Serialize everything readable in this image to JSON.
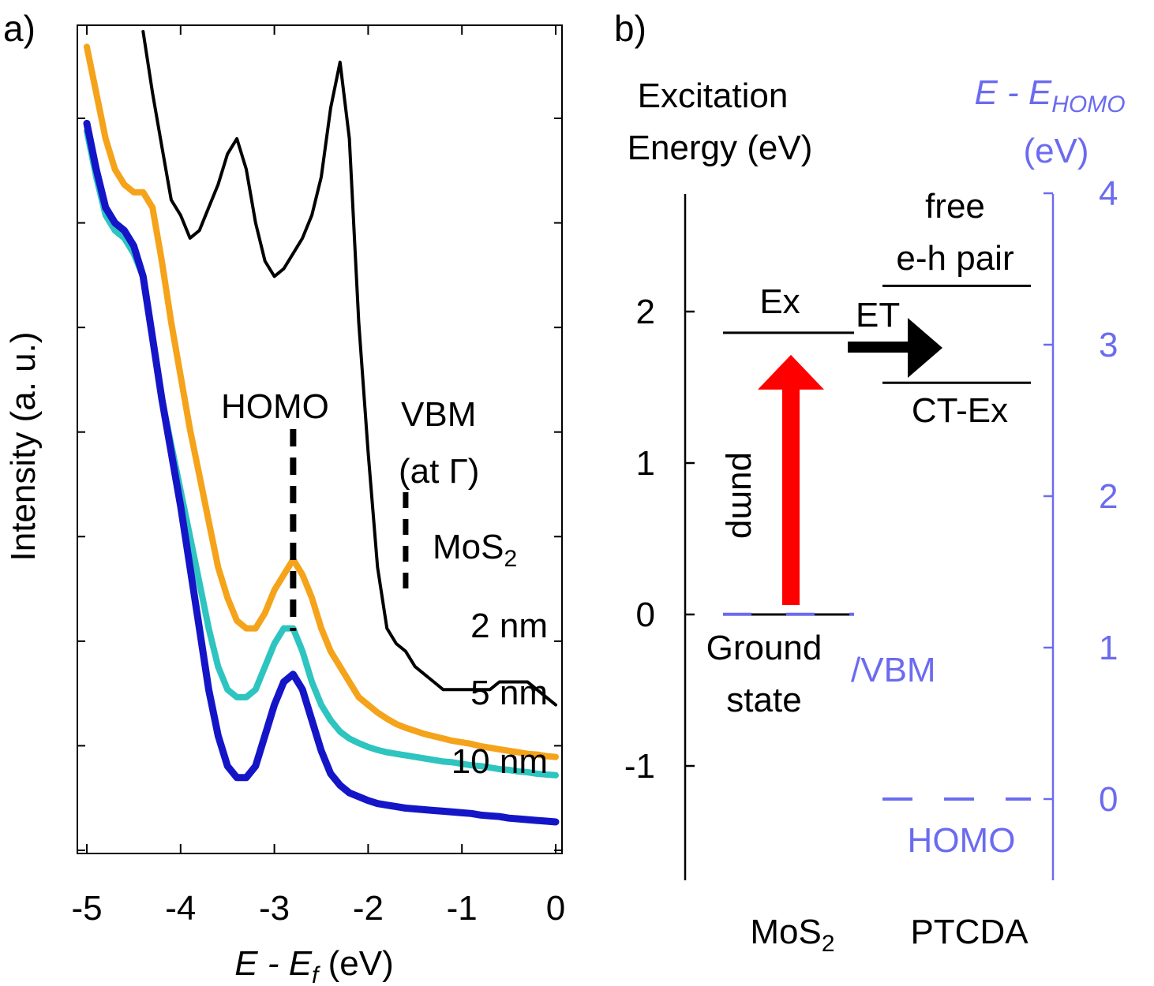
{
  "panel_a": {
    "panel_label": "a)",
    "xlabel_main": "E - E",
    "xlabel_sub": "f",
    "xlabel_unit": " (eV)",
    "ylabel": "Intensity (a. u.)",
    "homo_label": "HOMO",
    "vbm_label_1": "VBM",
    "vbm_label_2": "(at Γ)"
  },
  "panel_b": {
    "panel_label": "b)",
    "left_axis_title_1": "Excitation",
    "left_axis_title_2": "Energy (eV)",
    "right_axis_title_main": "E - E",
    "right_axis_title_sub": "HOMO",
    "right_axis_title_2": "(eV)",
    "ex_label": "Ex",
    "et_label": "ET",
    "free_label_1": "free",
    "free_label_2": "e-h pair",
    "ctex_label": "CT-Ex",
    "pump_label": "pump",
    "ground_label_1": "Ground",
    "ground_label_2": "state",
    "vbm_label": "/VBM",
    "homo_label": "HOMO",
    "mos2_main": "MoS",
    "mos2_sub": "2",
    "ptcda_label": "PTCDA",
    "colors": {
      "axis_right": "#6b6bf0",
      "pump_arrow": "#ff0000",
      "et_arrow": "#000000"
    }
  },
  "chart_data": [
    {
      "type": "line",
      "xlim": [
        -5,
        0
      ],
      "x_ticks": [
        -5,
        -4,
        -3,
        -2,
        -1,
        0
      ],
      "x_tick_labels": [
        "-5",
        "-4",
        "-3",
        "-2",
        "-1",
        "0"
      ],
      "xlabel": "E - Ef (eV)",
      "ylabel": "Intensity (a. u.)",
      "y_tick_labels_shown": false,
      "y_tick_count": 8,
      "homo_position": -2.8,
      "vbm_position": -1.6,
      "series": [
        {
          "name": "MoS₂",
          "label_main": "MoS",
          "label_sub": "2",
          "color": "#000000",
          "x": [
            -4.4,
            -4.3,
            -4.2,
            -4.1,
            -4.0,
            -3.9,
            -3.8,
            -3.7,
            -3.6,
            -3.5,
            -3.4,
            -3.3,
            -3.2,
            -3.1,
            -3.0,
            -2.9,
            -2.8,
            -2.7,
            -2.6,
            -2.5,
            -2.4,
            -2.3,
            -2.2,
            -2.1,
            -2.0,
            -1.9,
            -1.8,
            -1.7,
            -1.6,
            -1.5,
            -1.4,
            -1.3,
            -1.2,
            -1.1,
            -1.0,
            -0.9,
            -0.8,
            -0.7,
            -0.6,
            -0.5,
            -0.4,
            -0.3,
            -0.2,
            -0.1,
            0.0
          ],
          "y": [
            100,
            92,
            85,
            78,
            76,
            73,
            74,
            77,
            80,
            84,
            86,
            82,
            75,
            70,
            68,
            69,
            71,
            73,
            76,
            81,
            90,
            96,
            86,
            62,
            45,
            30,
            22,
            20,
            19,
            17,
            16,
            15,
            14,
            14,
            14,
            14,
            14,
            14,
            15,
            15,
            15,
            15,
            14,
            13,
            12
          ]
        },
        {
          "name": "2 nm",
          "label": "2 nm",
          "color": "#f5a31a",
          "x": [
            -5.0,
            -4.9,
            -4.8,
            -4.7,
            -4.6,
            -4.5,
            -4.4,
            -4.3,
            -4.2,
            -4.1,
            -4.0,
            -3.9,
            -3.8,
            -3.7,
            -3.6,
            -3.5,
            -3.4,
            -3.3,
            -3.2,
            -3.1,
            -3.0,
            -2.9,
            -2.8,
            -2.7,
            -2.6,
            -2.5,
            -2.4,
            -2.3,
            -2.2,
            -2.1,
            -2.0,
            -1.9,
            -1.8,
            -1.7,
            -1.6,
            -1.5,
            -1.4,
            -1.3,
            -1.2,
            -1.1,
            -1.0,
            -0.9,
            -0.8,
            -0.7,
            -0.6,
            -0.5,
            -0.4,
            -0.3,
            -0.2,
            -0.1,
            0.0
          ],
          "y": [
            98,
            92,
            86,
            82,
            80,
            79,
            79,
            77,
            70,
            62,
            55,
            48,
            42,
            36,
            30,
            26,
            23,
            22,
            22,
            24,
            27,
            29,
            31,
            29,
            26,
            22,
            19,
            17,
            15,
            13,
            12,
            11,
            10.2,
            9.5,
            9,
            8.6,
            8.2,
            7.9,
            7.6,
            7.3,
            7.1,
            6.9,
            6.6,
            6.4,
            6.2,
            6,
            5.8,
            5.6,
            5.5,
            5.3,
            5.2
          ]
        },
        {
          "name": "5 nm",
          "label": "5 nm",
          "color": "#2ec4c0",
          "x": [
            -5.0,
            -4.9,
            -4.8,
            -4.7,
            -4.6,
            -4.5,
            -4.4,
            -4.3,
            -4.2,
            -4.1,
            -4.0,
            -3.9,
            -3.8,
            -3.7,
            -3.6,
            -3.5,
            -3.4,
            -3.3,
            -3.2,
            -3.1,
            -3.0,
            -2.9,
            -2.8,
            -2.7,
            -2.6,
            -2.5,
            -2.4,
            -2.3,
            -2.2,
            -2.1,
            -2.0,
            -1.9,
            -1.8,
            -1.7,
            -1.6,
            -1.5,
            -1.4,
            -1.3,
            -1.2,
            -1.1,
            -1.0,
            -0.9,
            -0.8,
            -0.7,
            -0.6,
            -0.5,
            -0.4,
            -0.3,
            -0.2,
            -0.1,
            0.0
          ],
          "y": [
            87,
            81,
            76,
            74,
            73,
            71,
            68,
            60,
            52,
            46,
            40,
            34,
            28,
            22,
            17,
            14,
            13,
            13,
            14,
            17,
            20,
            22,
            22,
            19,
            15,
            12,
            10,
            8.5,
            7.6,
            7,
            6.5,
            6.1,
            5.8,
            5.6,
            5.4,
            5.2,
            5.0,
            4.8,
            4.6,
            4.5,
            4.3,
            4.1,
            4.0,
            3.8,
            3.6,
            3.5,
            3.3,
            3.2,
            3.0,
            2.9,
            2.8
          ]
        },
        {
          "name": "10 nm",
          "label": "10 nm",
          "color": "#1515c8",
          "x": [
            -5.0,
            -4.9,
            -4.8,
            -4.7,
            -4.6,
            -4.5,
            -4.4,
            -4.3,
            -4.2,
            -4.1,
            -4.0,
            -3.9,
            -3.8,
            -3.7,
            -3.6,
            -3.5,
            -3.4,
            -3.3,
            -3.2,
            -3.1,
            -3.0,
            -2.9,
            -2.8,
            -2.7,
            -2.6,
            -2.5,
            -2.4,
            -2.3,
            -2.2,
            -2.1,
            -2.0,
            -1.9,
            -1.8,
            -1.7,
            -1.6,
            -1.5,
            -1.4,
            -1.3,
            -1.2,
            -1.1,
            -1.0,
            -0.9,
            -0.8,
            -0.7,
            -0.6,
            -0.5,
            -0.4,
            -0.3,
            -0.2,
            -0.1,
            0.0
          ],
          "y": [
            88,
            82,
            77,
            75,
            74,
            72,
            68,
            60,
            52,
            45,
            38,
            30,
            22,
            14,
            8,
            4,
            2.5,
            2.5,
            4,
            8,
            12,
            15,
            16,
            14,
            10,
            6,
            3,
            1.5,
            0.5,
            0,
            -0.5,
            -0.9,
            -1.1,
            -1.3,
            -1.5,
            -1.6,
            -1.7,
            -1.8,
            -1.9,
            -2.0,
            -2.1,
            -2.2,
            -2.4,
            -2.5,
            -2.6,
            -2.8,
            -2.9,
            -3.0,
            -3.1,
            -3.2,
            -3.3
          ]
        }
      ]
    },
    {
      "type": "energy-level-diagram",
      "left_axis": {
        "title": "Excitation Energy (eV)",
        "ylim": [
          -1.75,
          2.8
        ],
        "ticks": [
          -1,
          0,
          1,
          2
        ],
        "tick_labels": [
          "-1",
          "0",
          "1",
          "2"
        ]
      },
      "right_axis": {
        "title": "E - EHOMO (eV)",
        "ylim": [
          -0.55,
          4
        ],
        "ticks": [
          0,
          1,
          2,
          3,
          4
        ],
        "tick_labels": [
          "0",
          "1",
          "2",
          "3",
          "4"
        ],
        "color": "#6b6bf0"
      },
      "columns": [
        "MoS₂",
        "PTCDA"
      ],
      "levels": [
        {
          "label": "Ex",
          "material": "MoS₂",
          "excitation_energy": 1.86,
          "style": "solid"
        },
        {
          "label": "Ground state",
          "material": "MoS₂",
          "excitation_energy": 0,
          "style": "solid"
        },
        {
          "label": "/VBM",
          "material": "MoS₂",
          "e_minus_ehomo": 1.22,
          "style": "dashed"
        },
        {
          "label": "free e-h pair",
          "material": "PTCDA",
          "excitation_energy": 2.17,
          "style": "solid"
        },
        {
          "label": "CT-Ex",
          "material": "PTCDA",
          "excitation_energy": 1.53,
          "style": "solid"
        },
        {
          "label": "HOMO",
          "material": "PTCDA",
          "e_minus_ehomo": 0,
          "style": "dashed"
        }
      ],
      "arrows": [
        {
          "label": "pump",
          "from": 0,
          "to": 1.86,
          "color": "#ff0000"
        },
        {
          "label": "ET",
          "from_material": "MoS₂",
          "to_material": "PTCDA",
          "color": "#000000"
        }
      ]
    }
  ]
}
